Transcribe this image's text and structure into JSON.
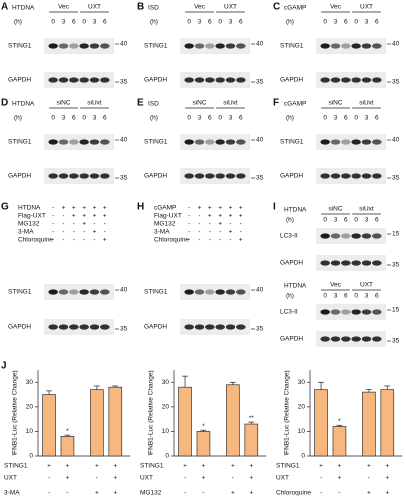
{
  "panels": [
    {
      "letter": "A",
      "treatment": "HTDNA",
      "groups": [
        "Vec",
        "UXT"
      ],
      "time_label": "(h)",
      "times": [
        0,
        3,
        6,
        0,
        3,
        6
      ],
      "blots": [
        {
          "label": "STING1",
          "marker": 40
        },
        {
          "label": "GAPDH",
          "marker": 35
        }
      ]
    },
    {
      "letter": "B",
      "treatment": "ISD",
      "groups": [
        "Vec",
        "UXT"
      ],
      "time_label": "(h)",
      "times": [
        0,
        3,
        6,
        0,
        3,
        6
      ],
      "blots": [
        {
          "label": "STING1",
          "marker": 40
        },
        {
          "label": "GAPDH",
          "marker": 35
        }
      ]
    },
    {
      "letter": "C",
      "treatment": "cGAMP",
      "groups": [
        "Vec",
        "UXT"
      ],
      "time_label": "(h)",
      "times": [
        0,
        3,
        6,
        0,
        3,
        6
      ],
      "blots": [
        {
          "label": "STING1",
          "marker": 40
        },
        {
          "label": "GAPDH",
          "marker": 35
        }
      ]
    },
    {
      "letter": "D",
      "treatment": "HTDNA",
      "groups": [
        "siNC",
        "siUxt"
      ],
      "time_label": "(h)",
      "times": [
        0,
        3,
        6,
        0,
        3,
        6
      ],
      "blots": [
        {
          "label": "STING1",
          "marker": 40
        },
        {
          "label": "GAPDH",
          "marker": 35
        }
      ]
    },
    {
      "letter": "E",
      "treatment": "ISD",
      "groups": [
        "siNC",
        "siUxt"
      ],
      "time_label": "(h)",
      "times": [
        0,
        3,
        6,
        0,
        3,
        6
      ],
      "blots": [
        {
          "label": "STING1",
          "marker": 40
        },
        {
          "label": "GAPDH",
          "marker": 35
        }
      ]
    },
    {
      "letter": "F",
      "treatment": "cGAMP",
      "groups": [
        "siNC",
        "siUxt"
      ],
      "time_label": "(h)",
      "times": [
        0,
        3,
        6,
        0,
        3,
        6
      ],
      "blots": [
        {
          "label": "STING1",
          "marker": 40
        },
        {
          "label": "GAPDH",
          "marker": 35
        }
      ]
    },
    {
      "letter": "G",
      "conditions": [
        {
          "label": "HTDNA",
          "signs": [
            "-",
            "+",
            "+",
            "+",
            "+",
            "+"
          ]
        },
        {
          "label": "Flag-UXT",
          "signs": [
            "-",
            "-",
            "+",
            "+",
            "+",
            "+"
          ]
        },
        {
          "label": "MG132",
          "signs": [
            "-",
            "-",
            "-",
            "+",
            "-",
            "-"
          ]
        },
        {
          "label": "3-MA",
          "signs": [
            "-",
            "-",
            "-",
            "-",
            "+",
            "-"
          ]
        },
        {
          "label": "Chloroquine",
          "signs": [
            "-",
            "-",
            "-",
            "-",
            "-",
            "+"
          ]
        }
      ],
      "blots": [
        {
          "label": "STING1",
          "marker": 40
        },
        {
          "label": "GAPDH",
          "marker": 35
        }
      ]
    },
    {
      "letter": "H",
      "conditions": [
        {
          "label": "cGAMP",
          "signs": [
            "-",
            "+",
            "+",
            "+",
            "+",
            "+"
          ]
        },
        {
          "label": "Flag-UXT",
          "signs": [
            "-",
            "-",
            "+",
            "+",
            "+",
            "+"
          ]
        },
        {
          "label": "MG132",
          "signs": [
            "-",
            "-",
            "-",
            "+",
            "-",
            "-"
          ]
        },
        {
          "label": "3-MA",
          "signs": [
            "-",
            "-",
            "-",
            "-",
            "+",
            "-"
          ]
        },
        {
          "label": "Chloroquine",
          "signs": [
            "-",
            "-",
            "-",
            "-",
            "-",
            "+"
          ]
        }
      ],
      "blots": [
        {
          "label": "STING1",
          "marker": 40
        },
        {
          "label": "GAPDH",
          "marker": 35
        }
      ]
    },
    {
      "letter": "I",
      "sections": [
        {
          "treatment": "HTDNA",
          "groups": [
            "siNC",
            "siUxt"
          ],
          "time_label": "(h)",
          "times": [
            0,
            3,
            6,
            0,
            3,
            6
          ],
          "blots": [
            {
              "label": "LC3-II",
              "marker": 15
            },
            {
              "label": "GAPDH",
              "marker": 35
            }
          ]
        },
        {
          "treatment": "HTDNA",
          "groups": [
            "Vec",
            "UXT"
          ],
          "time_label": "(h)",
          "times": [
            0,
            3,
            6,
            0,
            3,
            6
          ],
          "blots": [
            {
              "label": "LC3-II",
              "marker": 15
            },
            {
              "label": "GAPDH",
              "marker": 35
            }
          ]
        }
      ]
    }
  ],
  "figure_letter": "J",
  "chart_data": [
    {
      "type": "bar",
      "y_label": "IFNB1-Luc (Relative Change)",
      "values": [
        25,
        8,
        27,
        28
      ],
      "errors": [
        1.5,
        0.5,
        1.5,
        0.5
      ],
      "annotations": [
        null,
        "*",
        null,
        null
      ],
      "color": "#f7b880",
      "ylim": [
        0,
        35
      ],
      "yticks": [
        0,
        10,
        20,
        30
      ],
      "conditions": [
        {
          "label": "STING1",
          "signs": [
            "+",
            "+",
            "+",
            "+"
          ]
        },
        {
          "label": "UXT",
          "signs": [
            "-",
            "+",
            "-",
            "+"
          ]
        },
        {
          "label": "3-MA",
          "signs": [
            "-",
            "-",
            "+",
            "+"
          ]
        }
      ]
    },
    {
      "type": "bar",
      "y_label": "IFNB1-Luc (Relative Change)",
      "values": [
        28,
        10,
        29,
        13
      ],
      "errors": [
        4.5,
        0.5,
        1,
        0.8
      ],
      "annotations": [
        null,
        "*",
        null,
        "**"
      ],
      "color": "#f7b880",
      "ylim": [
        0,
        35
      ],
      "yticks": [
        0,
        10,
        20,
        30
      ],
      "conditions": [
        {
          "label": "STING1",
          "signs": [
            "+",
            "+",
            "+",
            "+"
          ]
        },
        {
          "label": "UXT",
          "signs": [
            "-",
            "+",
            "-",
            "+"
          ]
        },
        {
          "label": "MG132",
          "signs": [
            "-",
            "-",
            "+",
            "+"
          ]
        }
      ]
    },
    {
      "type": "bar",
      "y_label": "IFNB1-Luc (Relative Change)",
      "values": [
        27,
        12,
        26,
        27
      ],
      "errors": [
        3,
        0.5,
        1,
        1.5
      ],
      "annotations": [
        null,
        "*",
        null,
        null
      ],
      "color": "#f7b880",
      "ylim": [
        0,
        35
      ],
      "yticks": [
        0,
        10,
        20,
        30
      ],
      "conditions": [
        {
          "label": "STING1",
          "signs": [
            "+",
            "+",
            "+",
            "+"
          ]
        },
        {
          "label": "UXT",
          "signs": [
            "-",
            "+",
            "-",
            "+"
          ]
        },
        {
          "label": "Chloroquine",
          "signs": [
            "-",
            "-",
            "+",
            "+"
          ]
        }
      ]
    }
  ]
}
